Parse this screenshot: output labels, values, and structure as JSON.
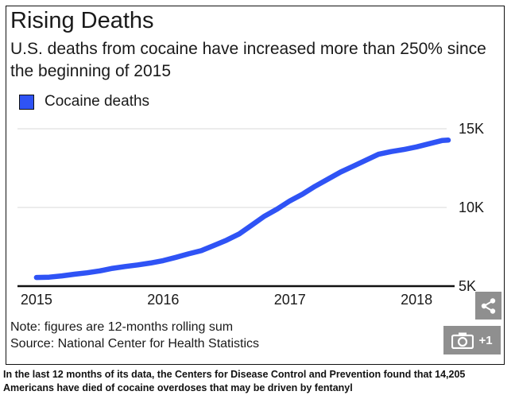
{
  "chart_data": {
    "type": "line",
    "title": "Rising Deaths",
    "subtitle": "U.S. deaths from cocaine have increased more than 250% since the beginning of 2015",
    "legend": [
      "Cocaine deaths"
    ],
    "xlabel": "",
    "ylabel": "",
    "x_ticks": [
      "2015",
      "2016",
      "2017",
      "2018"
    ],
    "y_ticks": [
      "15K",
      "10K",
      "5K"
    ],
    "xlim": [
      2014.85,
      2018.3
    ],
    "ylim": [
      5000,
      15000
    ],
    "series": [
      {
        "name": "Cocaine deaths",
        "color": "#2f53f5",
        "x": [
          2015.0,
          2015.1,
          2015.2,
          2015.3,
          2015.4,
          2015.5,
          2015.6,
          2015.7,
          2015.8,
          2015.9,
          2016.0,
          2016.1,
          2016.2,
          2016.3,
          2016.4,
          2016.5,
          2016.6,
          2016.7,
          2016.8,
          2016.9,
          2017.0,
          2017.1,
          2017.2,
          2017.3,
          2017.4,
          2017.5,
          2017.6,
          2017.7,
          2017.8,
          2017.9,
          2018.0,
          2018.1,
          2018.2,
          2018.25
        ],
        "values": [
          5550,
          5570,
          5650,
          5760,
          5850,
          5970,
          6130,
          6250,
          6350,
          6470,
          6620,
          6830,
          7050,
          7250,
          7580,
          7920,
          8320,
          8880,
          9450,
          9900,
          10420,
          10850,
          11350,
          11800,
          12250,
          12620,
          13000,
          13380,
          13550,
          13680,
          13850,
          14050,
          14250,
          14280
        ]
      }
    ]
  },
  "note_line1": "Note: figures are 12-months rolling sum",
  "note_line2": "Source: National Center for Health Statistics",
  "photo_count": "+1",
  "caption": "In the last 12 months of its data, the Centers for Disease Control and Prevention found that 14,205 Americans have died of cocaine overdoses that may be driven by fentanyl"
}
